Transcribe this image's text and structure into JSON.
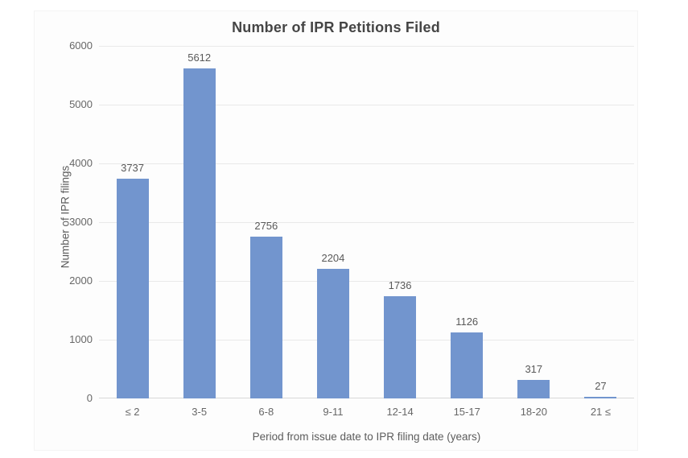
{
  "chart_data": {
    "type": "bar",
    "title": "Number of IPR Petitions Filed",
    "xlabel": "Period from issue date to IPR filing date (years)",
    "ylabel": "Number of IPR filings",
    "categories": [
      "≤ 2",
      "3-5",
      "6-8",
      "9-11",
      "12-14",
      "15-17",
      "18-20",
      "21 ≤"
    ],
    "values": [
      3737,
      5612,
      2756,
      2204,
      1736,
      1126,
      317,
      27
    ],
    "ylim": [
      0,
      6000
    ],
    "yticks": [
      0,
      1000,
      2000,
      3000,
      4000,
      5000,
      6000
    ],
    "grid": "horizontal",
    "legend": "none",
    "bar_color": "#7295ce",
    "gridline_color": "#e9e9e9",
    "axis_line_color": "#d8d8d8",
    "title_color": "#454545",
    "label_color": "#595959"
  }
}
